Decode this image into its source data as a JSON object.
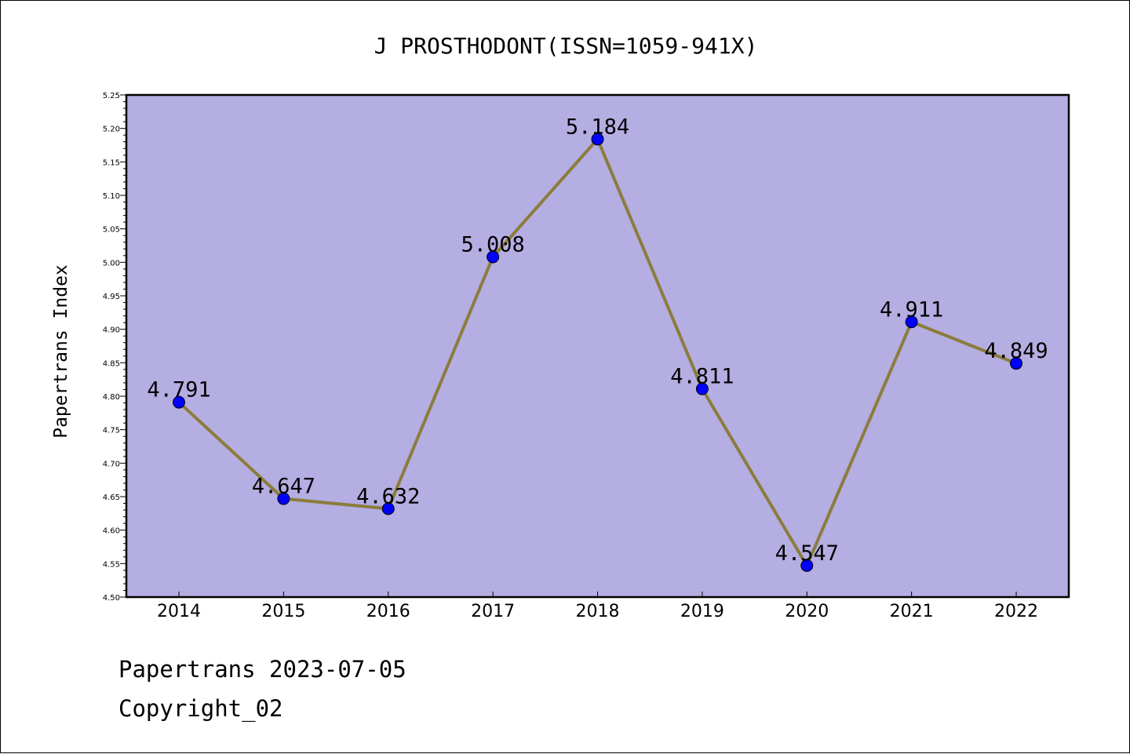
{
  "chart_data": {
    "type": "line",
    "title": "J PROSTHODONT(ISSN=1059-941X)",
    "ylabel": "Papertrans Index",
    "xlabel": "",
    "categories": [
      "2014",
      "2015",
      "2016",
      "2017",
      "2018",
      "2019",
      "2020",
      "2021",
      "2022"
    ],
    "values": [
      4.791,
      4.647,
      4.632,
      5.008,
      5.184,
      4.811,
      4.547,
      4.911,
      4.849
    ],
    "data_labels": [
      "4.791",
      "4.647",
      "4.632",
      "5.008",
      "5.184",
      "4.811",
      "4.547",
      "4.911",
      "4.849"
    ],
    "ylim": [
      4.5,
      5.25
    ],
    "yticks": [
      "4.50",
      "4.55",
      "4.60",
      "4.65",
      "4.70",
      "4.75",
      "4.80",
      "4.85",
      "4.90",
      "4.95",
      "5.00",
      "5.05",
      "5.10",
      "5.15",
      "5.20",
      "5.25"
    ],
    "grid": false,
    "legend": "none",
    "colors": {
      "plot_background": "#b4aee2",
      "line": "#8c7c3c",
      "marker": "#0000ff"
    }
  },
  "footer": {
    "date_text": "Papertrans 2023-07-05",
    "copyright_text": "Copyright_02"
  }
}
